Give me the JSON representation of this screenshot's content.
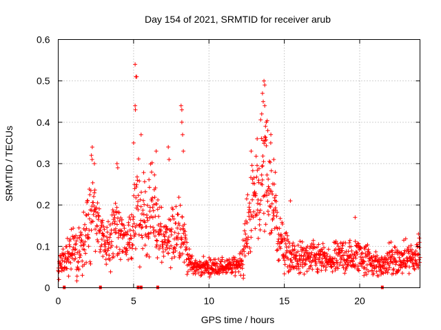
{
  "chart_data": {
    "type": "scatter",
    "title": "Day 154 of 2021, SRMTID for receiver arub",
    "xlabel": "GPS time / hours",
    "ylabel": "SRMTID / TECUs",
    "xlim": [
      0,
      24
    ],
    "ylim": [
      0,
      0.6
    ],
    "x_ticks": [
      0,
      5,
      10,
      15,
      20
    ],
    "x_tick_labels": [
      "0",
      "5",
      "10",
      "15",
      "20"
    ],
    "y_ticks": [
      0,
      0.1,
      0.2,
      0.3,
      0.4,
      0.5,
      0.6
    ],
    "y_tick_labels": [
      "0",
      "0.1",
      "0.2",
      "0.3",
      "0.4",
      "0.5",
      "0.6"
    ],
    "grid": true,
    "marker": "+",
    "color": "#ff0000",
    "envelope": {
      "x": [
        0,
        0.5,
        1.0,
        1.5,
        2.0,
        2.3,
        2.7,
        3.0,
        3.5,
        4.0,
        4.5,
        5.0,
        5.2,
        5.5,
        6.0,
        6.3,
        6.7,
        7.0,
        7.5,
        8.0,
        8.3,
        8.7,
        9.0,
        9.5,
        10.0,
        10.5,
        11.0,
        11.5,
        12.0,
        12.3,
        12.7,
        13.0,
        13.3,
        13.7,
        14.0,
        14.3,
        14.7,
        15.0,
        15.5,
        16.0,
        16.5,
        17.0,
        17.5,
        18.0,
        18.5,
        19.0,
        19.5,
        20.0,
        20.5,
        21.0,
        21.5,
        22.0,
        22.5,
        23.0,
        23.5,
        24.0
      ],
      "center": [
        0.05,
        0.07,
        0.09,
        0.1,
        0.14,
        0.2,
        0.14,
        0.11,
        0.12,
        0.14,
        0.11,
        0.13,
        0.2,
        0.16,
        0.18,
        0.2,
        0.14,
        0.1,
        0.12,
        0.16,
        0.13,
        0.06,
        0.05,
        0.05,
        0.05,
        0.05,
        0.05,
        0.05,
        0.06,
        0.08,
        0.18,
        0.22,
        0.24,
        0.26,
        0.25,
        0.2,
        0.12,
        0.09,
        0.07,
        0.07,
        0.07,
        0.07,
        0.07,
        0.06,
        0.07,
        0.08,
        0.07,
        0.08,
        0.07,
        0.06,
        0.05,
        0.07,
        0.06,
        0.07,
        0.07,
        0.08
      ],
      "spread": [
        0.02,
        0.03,
        0.04,
        0.05,
        0.07,
        0.09,
        0.05,
        0.04,
        0.05,
        0.06,
        0.05,
        0.05,
        0.09,
        0.07,
        0.08,
        0.09,
        0.06,
        0.04,
        0.05,
        0.08,
        0.06,
        0.02,
        0.015,
        0.015,
        0.015,
        0.015,
        0.015,
        0.015,
        0.02,
        0.04,
        0.07,
        0.09,
        0.1,
        0.12,
        0.11,
        0.09,
        0.05,
        0.04,
        0.03,
        0.03,
        0.03,
        0.03,
        0.03,
        0.025,
        0.03,
        0.035,
        0.03,
        0.035,
        0.03,
        0.025,
        0.02,
        0.03,
        0.025,
        0.03,
        0.03,
        0.03
      ]
    },
    "peaks": [
      {
        "x": 0.05,
        "y": 0.02
      },
      {
        "x": 2.2,
        "y": 0.32
      },
      {
        "x": 2.25,
        "y": 0.31
      },
      {
        "x": 2.4,
        "y": 0.3
      },
      {
        "x": 3.9,
        "y": 0.3
      },
      {
        "x": 3.95,
        "y": 0.29
      },
      {
        "x": 5.1,
        "y": 0.54
      },
      {
        "x": 5.15,
        "y": 0.51
      },
      {
        "x": 5.2,
        "y": 0.51
      },
      {
        "x": 5.1,
        "y": 0.44
      },
      {
        "x": 5.12,
        "y": 0.43
      },
      {
        "x": 5.0,
        "y": 0.35
      },
      {
        "x": 5.5,
        "y": 0.37
      },
      {
        "x": 6.5,
        "y": 0.33
      },
      {
        "x": 7.3,
        "y": 0.34
      },
      {
        "x": 7.35,
        "y": 0.31
      },
      {
        "x": 8.15,
        "y": 0.44
      },
      {
        "x": 8.2,
        "y": 0.43
      },
      {
        "x": 8.2,
        "y": 0.4
      },
      {
        "x": 8.25,
        "y": 0.37
      },
      {
        "x": 8.3,
        "y": 0.33
      },
      {
        "x": 13.65,
        "y": 0.5
      },
      {
        "x": 13.7,
        "y": 0.49
      },
      {
        "x": 13.55,
        "y": 0.47
      },
      {
        "x": 13.6,
        "y": 0.45
      },
      {
        "x": 13.7,
        "y": 0.44
      },
      {
        "x": 13.5,
        "y": 0.42
      },
      {
        "x": 13.8,
        "y": 0.4
      },
      {
        "x": 13.75,
        "y": 0.39
      },
      {
        "x": 13.9,
        "y": 0.38
      },
      {
        "x": 13.2,
        "y": 0.36
      },
      {
        "x": 14.1,
        "y": 0.35
      },
      {
        "x": 12.8,
        "y": 0.33
      },
      {
        "x": 14.3,
        "y": 0.31
      },
      {
        "x": 15.4,
        "y": 0.21
      },
      {
        "x": 19.7,
        "y": 0.17
      },
      {
        "x": 23.9,
        "y": 0.13
      },
      {
        "x": 23.95,
        "y": 0.12
      }
    ],
    "baseline_markers_x": [
      0.4,
      2.8,
      5.3,
      5.5,
      6.6,
      21.5
    ]
  }
}
